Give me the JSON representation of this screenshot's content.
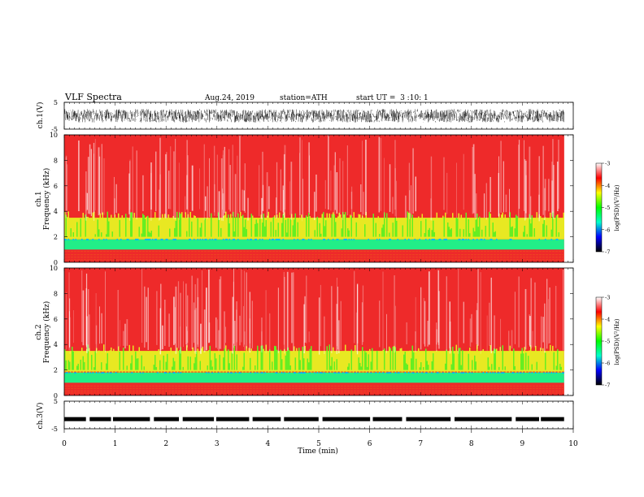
{
  "header": {
    "title": "VLF Spectra",
    "date": "Aug.24, 2019",
    "station": "station=ATH",
    "start": "start UT =  3 :10: 1"
  },
  "colors": {
    "spectrogram_background": "#ee2a2a",
    "colormap": [
      "#000000",
      "#0000ff",
      "#00ffcc",
      "#00ff00",
      "#ffff00",
      "#ff0000",
      "#ffffff"
    ],
    "waveform": "#000000"
  },
  "chart_data": [
    {
      "type": "line",
      "panel": "ch1-waveform",
      "ylabel": "ch.1(V)",
      "ylim": [
        -5,
        5
      ],
      "yticks": [
        "5",
        "-5"
      ],
      "xlim": [
        0,
        10
      ],
      "description_values": {
        "amplitude_range": [
          -2.5,
          2.5
        ]
      }
    },
    {
      "type": "heatmap",
      "panel": "ch1-spectrogram",
      "ylabel_line1": "ch.1",
      "ylabel_line2": "Frequency (kHz)",
      "ylim": [
        0,
        10
      ],
      "yticks": [
        "0",
        "2",
        "4",
        "6",
        "8",
        "10"
      ],
      "xlim": [
        0,
        10
      ],
      "colorbar": {
        "label": "log(PSD)(V²/Hz)",
        "range": [
          -7,
          -3
        ],
        "ticks": [
          "-3",
          "-4",
          "-5",
          "-6",
          "-7"
        ]
      },
      "bands": [
        {
          "from_khz": 0,
          "to_khz": 1,
          "level": -4.2
        },
        {
          "from_khz": 1,
          "to_khz": 1.8,
          "level": -5.2
        },
        {
          "from_khz": 1.8,
          "to_khz": 3.5,
          "level": -4.5
        },
        {
          "from_khz": 3.5,
          "to_khz": 10,
          "level": -3.9
        }
      ]
    },
    {
      "type": "heatmap",
      "panel": "ch2-spectrogram",
      "ylabel_line1": "ch.2",
      "ylabel_line2": "Frequency (kHz)",
      "ylim": [
        0,
        10
      ],
      "yticks": [
        "0",
        "2",
        "4",
        "6",
        "8",
        "10"
      ],
      "xlim": [
        0,
        10
      ],
      "colorbar": {
        "label": "log(PSD)(V²/Hz)",
        "range": [
          -7,
          -3
        ],
        "ticks": [
          "-3",
          "-4",
          "-5",
          "-6",
          "-7"
        ]
      },
      "bands": [
        {
          "from_khz": 0,
          "to_khz": 1,
          "level": -4.2
        },
        {
          "from_khz": 1,
          "to_khz": 1.8,
          "level": -5.2
        },
        {
          "from_khz": 1.8,
          "to_khz": 3.5,
          "level": -4.5
        },
        {
          "from_khz": 3.5,
          "to_khz": 10,
          "level": -3.9
        }
      ]
    },
    {
      "type": "line",
      "panel": "ch3-waveform",
      "ylabel": "ch.3(V)",
      "ylim": [
        -5,
        5
      ],
      "yticks": [
        "5",
        "-5"
      ],
      "xlim": [
        0,
        10
      ],
      "description_values": {
        "level": -1.5
      }
    }
  ],
  "xaxis": {
    "label": "Time (min)",
    "ticks": [
      "0",
      "1",
      "2",
      "3",
      "4",
      "5",
      "6",
      "7",
      "8",
      "9",
      "10"
    ],
    "data_end": 9.82
  }
}
